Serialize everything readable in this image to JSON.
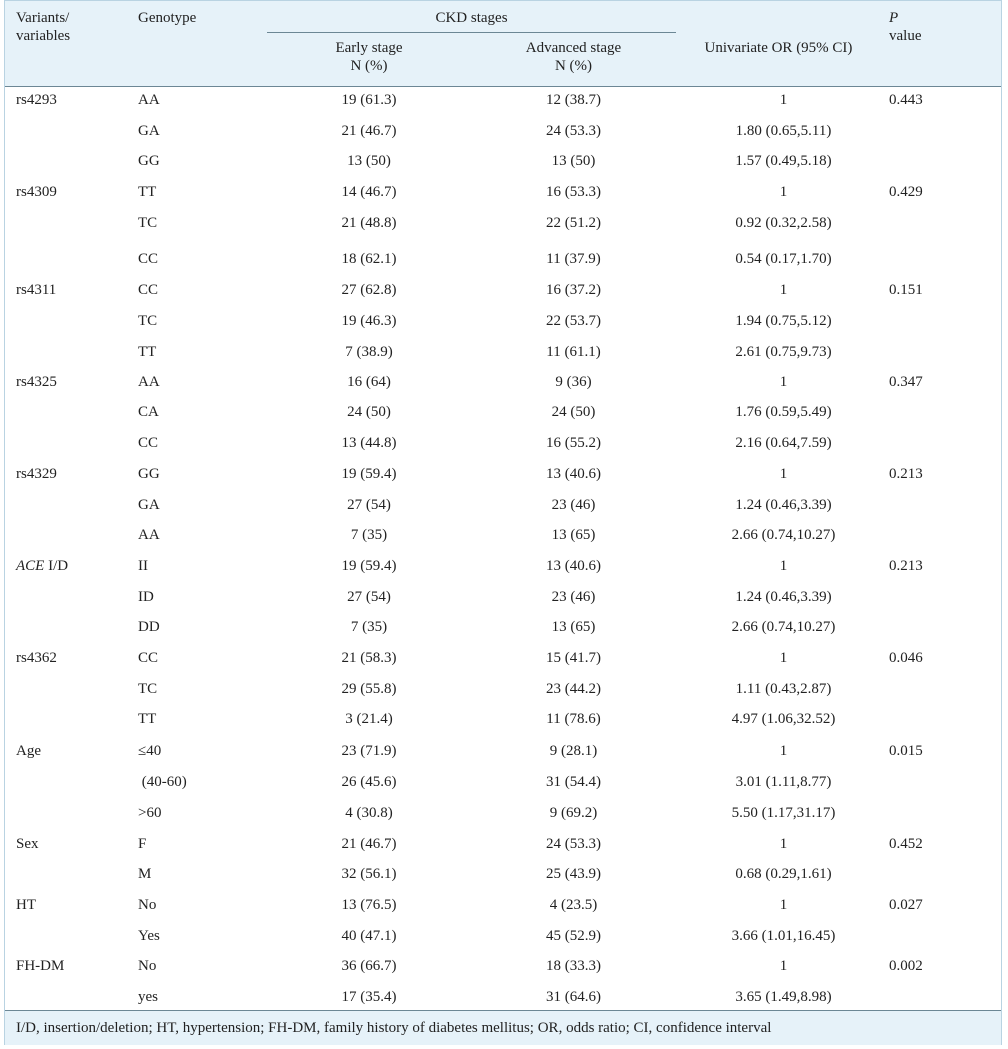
{
  "header": {
    "variants": [
      "Variants/",
      "variables"
    ],
    "genotype": "Genotype",
    "ckd_stages": "CKD stages",
    "early": [
      "Early stage",
      "N (%)"
    ],
    "advanced": [
      "Advanced stage",
      "N (%)"
    ],
    "or": "Univariate OR (95% CI)",
    "p": [
      "P",
      "value"
    ]
  },
  "rows": [
    {
      "variant": "rs4293",
      "genotype": "AA",
      "early": "19 (61.3)",
      "advanced": "12 (38.7)",
      "or": "1",
      "p": "0.443"
    },
    {
      "variant": "",
      "genotype": "GA",
      "early": "21 (46.7)",
      "advanced": "24 (53.3)",
      "or": "1.80 (0.65,5.11)",
      "p": ""
    },
    {
      "variant": "",
      "genotype": "GG",
      "early": "13 (50)",
      "advanced": "13 (50)",
      "or": "1.57 (0.49,5.18)",
      "p": ""
    },
    {
      "variant": "rs4309",
      "genotype": "TT",
      "early": "14 (46.7)",
      "advanced": "16 (53.3)",
      "or": "1",
      "p": "0.429"
    },
    {
      "variant": "",
      "genotype": "TC",
      "early": "21 (48.8)",
      "advanced": "22 (51.2)",
      "or": "0.92 (0.32,2.58)",
      "p": ""
    },
    {
      "variant": "",
      "genotype": "CC",
      "early": "18 (62.1)",
      "advanced": "11 (37.9)",
      "or": "0.54 (0.17,1.70)",
      "p": ""
    },
    {
      "variant": "rs4311",
      "genotype": "CC",
      "early": "27 (62.8)",
      "advanced": "16 (37.2)",
      "or": "1",
      "p": "0.151"
    },
    {
      "variant": "",
      "genotype": "TC",
      "early": "19 (46.3)",
      "advanced": "22 (53.7)",
      "or": "1.94 (0.75,5.12)",
      "p": ""
    },
    {
      "variant": "",
      "genotype": "TT",
      "early": "7 (38.9)",
      "advanced": "11 (61.1)",
      "or": "2.61 (0.75,9.73)",
      "p": ""
    },
    {
      "variant": "rs4325",
      "genotype": "AA",
      "early": "16 (64)",
      "advanced": "9 (36)",
      "or": "1",
      "p": "0.347"
    },
    {
      "variant": "",
      "genotype": "CA",
      "early": "24 (50)",
      "advanced": "24 (50)",
      "or": "1.76 (0.59,5.49)",
      "p": ""
    },
    {
      "variant": "",
      "genotype": "CC",
      "early": "13 (44.8)",
      "advanced": "16 (55.2)",
      "or": "2.16 (0.64,7.59)",
      "p": ""
    },
    {
      "variant": "rs4329",
      "genotype": "GG",
      "early": "19 (59.4)",
      "advanced": "13 (40.6)",
      "or": "1",
      "p": "0.213"
    },
    {
      "variant": "",
      "genotype": "GA",
      "early": "27 (54)",
      "advanced": "23 (46)",
      "or": "1.24 (0.46,3.39)",
      "p": ""
    },
    {
      "variant": "",
      "genotype": "AA",
      "early": "7 (35)",
      "advanced": "13 (65)",
      "or": "2.66 (0.74,10.27)",
      "p": ""
    },
    {
      "variant": "ACE",
      "variant_suffix": " I/D",
      "genotype": "II",
      "early": "19 (59.4)",
      "advanced": "13 (40.6)",
      "or": "1",
      "p": "0.213"
    },
    {
      "variant": "",
      "genotype": "ID",
      "early": "27 (54)",
      "advanced": "23 (46)",
      "or": "1.24 (0.46,3.39)",
      "p": ""
    },
    {
      "variant": "",
      "genotype": "DD",
      "early": "7 (35)",
      "advanced": "13 (65)",
      "or": "2.66 (0.74,10.27)",
      "p": ""
    },
    {
      "variant": "rs4362",
      "genotype": "CC",
      "early": "21 (58.3)",
      "advanced": "15 (41.7)",
      "or": "1",
      "p": "0.046"
    },
    {
      "variant": "",
      "genotype": "TC",
      "early": "29 (55.8)",
      "advanced": "23 (44.2)",
      "or": "1.11 (0.43,2.87)",
      "p": ""
    },
    {
      "variant": "",
      "genotype": "TT",
      "early": "3 (21.4)",
      "advanced": "11 (78.6)",
      "or": "4.97 (1.06,32.52)",
      "p": ""
    },
    {
      "variant": "Age",
      "genotype": "≤40",
      "early": "23 (71.9)",
      "advanced": "9 (28.1)",
      "or": "1",
      "p": "0.015"
    },
    {
      "variant": "",
      "genotype": " (40-60)",
      "early": "26 (45.6)",
      "advanced": "31 (54.4)",
      "or": "3.01 (1.11,8.77)",
      "p": ""
    },
    {
      "variant": "",
      "genotype": ">60",
      "early": "4 (30.8)",
      "advanced": "9 (69.2)",
      "or": "5.50 (1.17,31.17)",
      "p": ""
    },
    {
      "variant": "Sex",
      "genotype": "F",
      "early": "21 (46.7)",
      "advanced": "24 (53.3)",
      "or": "1",
      "p": "0.452"
    },
    {
      "variant": "",
      "genotype": "M",
      "early": "32 (56.1)",
      "advanced": "25 (43.9)",
      "or": "0.68 (0.29,1.61)",
      "p": ""
    },
    {
      "variant": "HT",
      "genotype": "No",
      "early": "13 (76.5)",
      "advanced": "4 (23.5)",
      "or": "1",
      "p": "0.027"
    },
    {
      "variant": "",
      "genotype": "Yes",
      "early": "40 (47.1)",
      "advanced": "45 (52.9)",
      "or": "3.66 (1.01,16.45)",
      "p": ""
    },
    {
      "variant": "FH-DM",
      "genotype": "No",
      "early": "36 (66.7)",
      "advanced": "18 (33.3)",
      "or": "1",
      "p": "0.002"
    },
    {
      "variant": "",
      "genotype": "yes",
      "early": "17 (35.4)",
      "advanced": "31 (64.6)",
      "or": "3.65 (1.49,8.98)",
      "p": ""
    }
  ],
  "footnote": "I/D, insertion/deletion; HT, hypertension; FH-DM, family history of diabetes mellitus; OR, odds ratio; CI, confidence interval"
}
